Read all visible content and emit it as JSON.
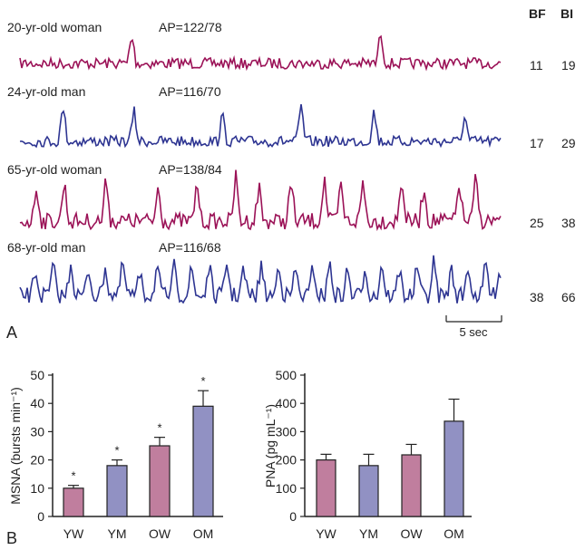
{
  "panel_a": {
    "label": "A",
    "col_headers": {
      "bf": "BF",
      "bi": "BI"
    },
    "scale_bar_label": "5 sec",
    "scale_bar_seconds": 5,
    "traces": [
      {
        "subject": "20-yr-old woman",
        "ap": "AP=122/78",
        "bf": "11",
        "bi": "19",
        "color": "#9b1257",
        "bursts": [
          10.1,
          32.6
        ]
      },
      {
        "subject": "24-yr-old man",
        "ap": "AP=116/70",
        "bf": "17",
        "bi": "29",
        "color": "#2e3592",
        "bursts": [
          3.9,
          10.3,
          18.3,
          25.4,
          32.0,
          40.2
        ]
      },
      {
        "subject": "65-yr-old woman",
        "ap": "AP=138/84",
        "bf": "25",
        "bi": "38",
        "color": "#9b1257",
        "bursts": [
          1.5,
          4.0,
          7.8,
          12.5,
          16.0,
          19.5,
          21.6,
          24.5,
          27.5,
          29.0,
          31.0,
          34.5,
          36.5,
          39.7,
          41.2
        ]
      },
      {
        "subject": "68-yr-old man",
        "ap": "AP=116/68",
        "bf": "38",
        "bi": "66",
        "color": "#2e3592",
        "bursts": [
          1.4,
          3.0,
          4.6,
          6.2,
          7.7,
          9.3,
          10.9,
          12.4,
          14.0,
          15.5,
          17.1,
          18.7,
          20.2,
          21.8,
          23.4,
          24.9,
          26.5,
          28.0,
          29.6,
          31.2,
          32.7,
          34.3,
          35.9,
          37.4,
          39.0,
          40.5,
          42.1,
          43.3
        ]
      }
    ]
  },
  "chart_data": [
    {
      "type": "bar",
      "panel": "B",
      "categories": [
        "YW",
        "YM",
        "OW",
        "OM"
      ],
      "values": [
        10,
        18,
        25,
        39
      ],
      "errors": [
        1,
        2,
        3,
        5.5
      ],
      "significance": [
        "*",
        "*",
        "*",
        "*"
      ],
      "colors": [
        "#c07e9e",
        "#9191c3",
        "#c07e9e",
        "#9191c3"
      ],
      "ylabel": "MSNA (bursts min⁻¹)",
      "ylim": [
        0,
        50
      ],
      "yticks": [
        "0",
        "10",
        "20",
        "30",
        "40",
        "50"
      ]
    },
    {
      "type": "bar",
      "categories": [
        "YW",
        "YM",
        "OW",
        "OM"
      ],
      "values": [
        200,
        180,
        218,
        337
      ],
      "errors": [
        20,
        40,
        37,
        78
      ],
      "significance": [
        "",
        "",
        "",
        ""
      ],
      "colors": [
        "#c07e9e",
        "#9191c3",
        "#c07e9e",
        "#9191c3"
      ],
      "ylabel": "PNA (pg mL⁻¹)",
      "ylim": [
        0,
        500
      ],
      "yticks": [
        "0",
        "100",
        "200",
        "300",
        "400",
        "500"
      ]
    }
  ],
  "panel_b": {
    "label": "B"
  }
}
